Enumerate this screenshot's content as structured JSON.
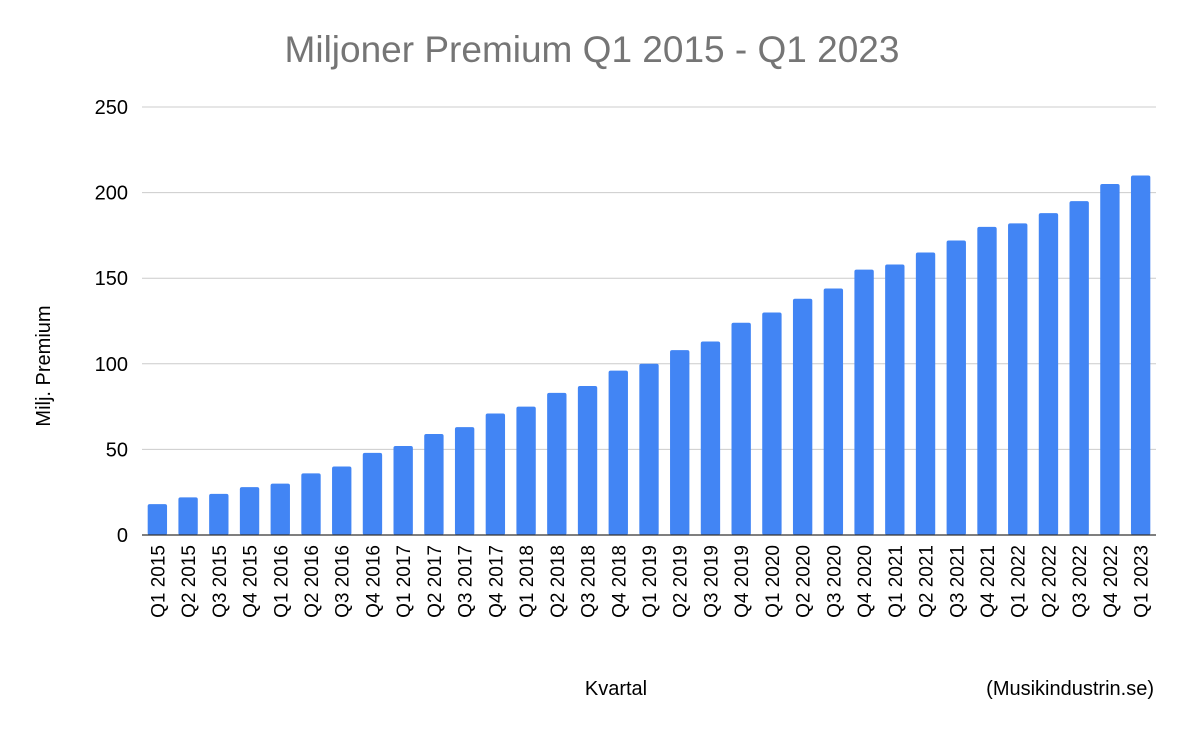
{
  "chart_data": {
    "type": "bar",
    "title": "Miljoner Premium Q1 2015 - Q1 2023",
    "xlabel": "Kvartal",
    "ylabel": "Milj. Premium",
    "source": "(Musikindustrin.se)",
    "ylim": [
      0,
      250
    ],
    "yticks": [
      0,
      50,
      100,
      150,
      200,
      250
    ],
    "grid": true,
    "bar_color": "#4285f4",
    "categories": [
      "Q1 2015",
      "Q2 2015",
      "Q3 2015",
      "Q4 2015",
      "Q1 2016",
      "Q2 2016",
      "Q3 2016",
      "Q4 2016",
      "Q1 2017",
      "Q2 2017",
      "Q3 2017",
      "Q4 2017",
      "Q1 2018",
      "Q2 2018",
      "Q3 2018",
      "Q4 2018",
      "Q1 2019",
      "Q2 2019",
      "Q3 2019",
      "Q4 2019",
      "Q1 2020",
      "Q2 2020",
      "Q3 2020",
      "Q4 2020",
      "Q1 2021",
      "Q2 2021",
      "Q3 2021",
      "Q4 2021",
      "Q1 2022",
      "Q2 2022",
      "Q3 2022",
      "Q4 2022",
      "Q1 2023"
    ],
    "values": [
      18,
      22,
      24,
      28,
      30,
      36,
      40,
      48,
      52,
      59,
      63,
      71,
      75,
      83,
      87,
      96,
      100,
      108,
      113,
      124,
      130,
      138,
      144,
      155,
      158,
      165,
      172,
      180,
      182,
      188,
      195,
      205,
      210
    ]
  }
}
